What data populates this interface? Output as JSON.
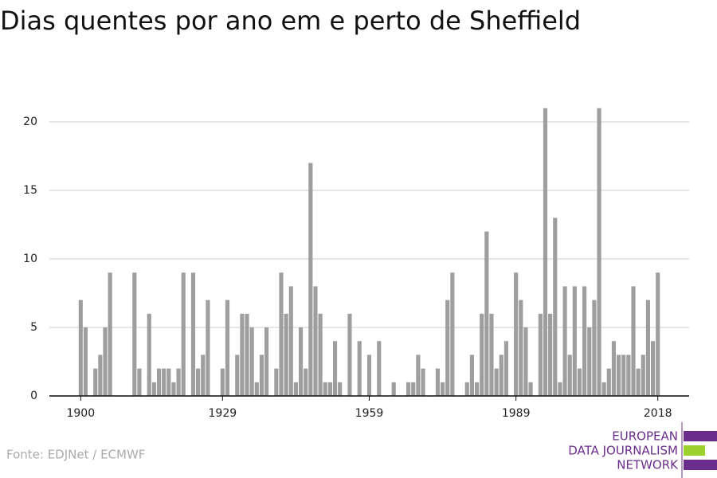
{
  "chart_data": {
    "type": "bar",
    "title": "Dias quentes por ano em e perto de Sheffield",
    "x": [
      1900,
      1901,
      1902,
      1903,
      1904,
      1905,
      1906,
      1907,
      1908,
      1909,
      1910,
      1911,
      1912,
      1913,
      1914,
      1915,
      1916,
      1917,
      1918,
      1919,
      1920,
      1921,
      1922,
      1923,
      1924,
      1925,
      1926,
      1927,
      1928,
      1929,
      1930,
      1931,
      1932,
      1933,
      1934,
      1935,
      1936,
      1937,
      1938,
      1939,
      1940,
      1941,
      1942,
      1943,
      1944,
      1945,
      1946,
      1947,
      1948,
      1949,
      1950,
      1951,
      1952,
      1953,
      1954,
      1955,
      1956,
      1957,
      1958,
      1959,
      1960,
      1961,
      1962,
      1963,
      1964,
      1965,
      1966,
      1967,
      1968,
      1969,
      1970,
      1971,
      1972,
      1973,
      1974,
      1975,
      1976,
      1977,
      1978,
      1979,
      1980,
      1981,
      1982,
      1983,
      1984,
      1985,
      1986,
      1987,
      1988,
      1989,
      1990,
      1991,
      1992,
      1993,
      1994,
      1995,
      1996,
      1997,
      1998,
      1999,
      2000,
      2001,
      2002,
      2003,
      2004,
      2005,
      2006,
      2007,
      2008,
      2009,
      2010,
      2011,
      2012,
      2013,
      2014,
      2015,
      2016,
      2017,
      2018
    ],
    "values": [
      7,
      5,
      0,
      2,
      3,
      5,
      9,
      0,
      0,
      0,
      0,
      9,
      2,
      0,
      6,
      1,
      2,
      2,
      2,
      1,
      2,
      9,
      0,
      9,
      2,
      3,
      7,
      0,
      0,
      2,
      7,
      0,
      3,
      6,
      6,
      5,
      1,
      3,
      5,
      0,
      2,
      9,
      6,
      8,
      1,
      5,
      2,
      17,
      8,
      6,
      1,
      1,
      4,
      1,
      0,
      6,
      0,
      4,
      0,
      3,
      0,
      4,
      0,
      0,
      1,
      0,
      0,
      1,
      1,
      3,
      2,
      0,
      0,
      2,
      1,
      7,
      9,
      0,
      0,
      1,
      3,
      1,
      6,
      12,
      6,
      2,
      3,
      4,
      0,
      9,
      7,
      5,
      1,
      0,
      6,
      21,
      6,
      13,
      1,
      8,
      3,
      8,
      2,
      8,
      5,
      7,
      21,
      1,
      2,
      4,
      3,
      3,
      3,
      8,
      2,
      3,
      7,
      4,
      9
    ],
    "color": "#9e9e9e",
    "xlim": [
      1893.6,
      2024.4
    ],
    "xticks": [
      1900,
      1929,
      1959,
      1989,
      2018
    ],
    "ylim": [
      0,
      22
    ],
    "yticks": [
      0,
      5,
      10,
      15,
      20
    ],
    "grid": true,
    "source": "Fonte: EDJNet / ECMWF",
    "logo": [
      "EUROPEAN",
      "DATA JOURNALISM",
      "NETWORK"
    ]
  }
}
